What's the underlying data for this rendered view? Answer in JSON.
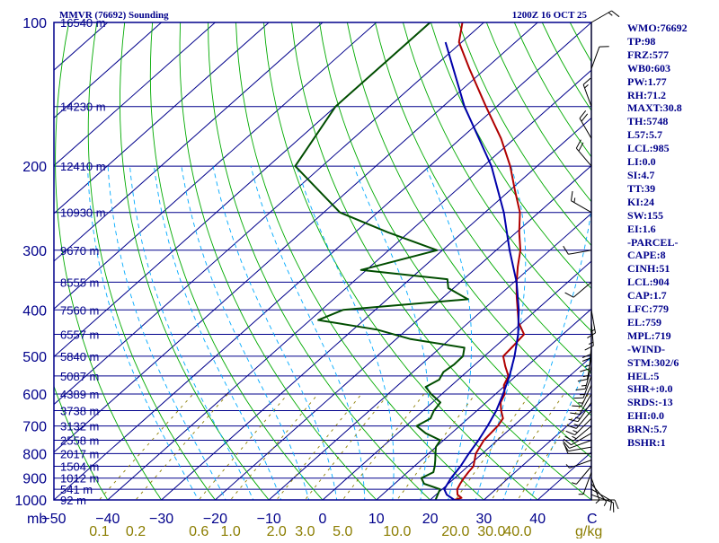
{
  "header": {
    "station": "MMVR (76692) Sounding",
    "time": "1200Z 16 OCT 25"
  },
  "colors": {
    "frame": "#00008b",
    "isobar": "#00008b",
    "isotherm": "#00008b",
    "dry_adiabat": "#00aa00",
    "moist_adiabat": "#00aaff",
    "mixing_ratio": "#8b7d00",
    "temperature": "#b00000",
    "dewpoint": "#004d00",
    "parcel": "#0000aa",
    "wind": "#000000"
  },
  "chart_data": {
    "type": "line",
    "title": "MMVR (76692) Sounding",
    "skew_t": true,
    "y_scale": "log",
    "ylabel": "mb",
    "xlabel": "C",
    "xlim": [
      -50,
      50
    ],
    "ylim": [
      1000,
      100
    ],
    "pressure_ticks": [
      100,
      200,
      300,
      400,
      500,
      600,
      700,
      800,
      900,
      1000
    ],
    "temperature_ticks": [
      -50,
      -40,
      -30,
      -20,
      -10,
      0,
      10,
      20,
      30,
      40
    ],
    "pressure_unit_label": "mb",
    "temperature_unit_label": "C",
    "mixing_ratio_unit_label": "g/kg",
    "mixing_ratio_labels": [
      "0.1",
      "0.2",
      "0.6",
      "1.0",
      "2.0",
      "3.0",
      "5.0",
      "10.0",
      "20.0",
      "30.0",
      "40.0"
    ],
    "mixing_ratio_values": [
      0.1,
      0.2,
      0.6,
      1.0,
      2.0,
      3.0,
      5.0,
      10.0,
      20.0,
      30.0,
      40.0
    ],
    "height_levels": [
      {
        "p": 100,
        "label": "16540 m"
      },
      {
        "p": 150,
        "label": "14230 m"
      },
      {
        "p": 200,
        "label": "12410 m"
      },
      {
        "p": 250,
        "label": "10930 m"
      },
      {
        "p": 300,
        "label": "9670 m"
      },
      {
        "p": 350,
        "label": "8555 m"
      },
      {
        "p": 400,
        "label": "7560 m"
      },
      {
        "p": 450,
        "label": "6557 m"
      },
      {
        "p": 500,
        "label": "5840 m"
      },
      {
        "p": 550,
        "label": "5087 m"
      },
      {
        "p": 600,
        "label": "4389 m"
      },
      {
        "p": 650,
        "label": "3738 m"
      },
      {
        "p": 700,
        "label": "3132 m"
      },
      {
        "p": 750,
        "label": "2558 m"
      },
      {
        "p": 800,
        "label": "2017 m"
      },
      {
        "p": 850,
        "label": "1504 m"
      },
      {
        "p": 900,
        "label": "1012 m"
      },
      {
        "p": 950,
        "label": "541 m"
      },
      {
        "p": 1000,
        "label": "92 m"
      }
    ],
    "series": [
      {
        "key": "temperature",
        "points": [
          [
            1000,
            24.5
          ],
          [
            990,
            25.4
          ],
          [
            975,
            24.0
          ],
          [
            950,
            22.8
          ],
          [
            925,
            22.2
          ],
          [
            900,
            21.7
          ],
          [
            875,
            21.3
          ],
          [
            850,
            21.0
          ],
          [
            800,
            18.8
          ],
          [
            750,
            17.5
          ],
          [
            700,
            17.1
          ],
          [
            675,
            16.5
          ],
          [
            650,
            14.5
          ],
          [
            625,
            12.7
          ],
          [
            600,
            11.7
          ],
          [
            575,
            9.7
          ],
          [
            550,
            8.6
          ],
          [
            525,
            6.0
          ],
          [
            500,
            3.5
          ],
          [
            475,
            3.2
          ],
          [
            450,
            2.8
          ],
          [
            425,
            -0.7
          ],
          [
            400,
            -3.5
          ],
          [
            375,
            -6.5
          ],
          [
            350,
            -9.5
          ],
          [
            325,
            -12.5
          ],
          [
            300,
            -15.5
          ],
          [
            275,
            -19.5
          ],
          [
            250,
            -23.5
          ],
          [
            225,
            -29.0
          ],
          [
            200,
            -35.0
          ],
          [
            175,
            -42.5
          ],
          [
            150,
            -52.0
          ],
          [
            125,
            -63.0
          ],
          [
            110,
            -70.5
          ],
          [
            100,
            -74.0
          ]
        ]
      },
      {
        "key": "dewpoint",
        "points": [
          [
            1000,
            21.0
          ],
          [
            975,
            20.3
          ],
          [
            950,
            19.6
          ],
          [
            925,
            15.5
          ],
          [
            900,
            13.8
          ],
          [
            875,
            14.8
          ],
          [
            850,
            13.8
          ],
          [
            825,
            12.6
          ],
          [
            800,
            11.3
          ],
          [
            775,
            10.0
          ],
          [
            750,
            9.4
          ],
          [
            725,
            5.2
          ],
          [
            700,
            2.0
          ],
          [
            675,
            3.0
          ],
          [
            650,
            2.0
          ],
          [
            625,
            1.5
          ],
          [
            600,
            -2.0
          ],
          [
            580,
            -4.5
          ],
          [
            560,
            -3.5
          ],
          [
            540,
            -4.3
          ],
          [
            520,
            -3.9
          ],
          [
            500,
            -4.0
          ],
          [
            480,
            -5.5
          ],
          [
            460,
            -17.5
          ],
          [
            440,
            -25.5
          ],
          [
            420,
            -38.5
          ],
          [
            400,
            -36.0
          ],
          [
            380,
            -15.0
          ],
          [
            360,
            -21.0
          ],
          [
            345,
            -23.0
          ],
          [
            330,
            -41.0
          ],
          [
            300,
            -31.0
          ],
          [
            275,
            -44.0
          ],
          [
            250,
            -57.0
          ],
          [
            200,
            -75.0
          ],
          [
            150,
            -80.0
          ],
          [
            125,
            -80.0
          ],
          [
            100,
            -80.0
          ]
        ]
      },
      {
        "key": "parcel",
        "points": [
          [
            1000,
            24.5
          ],
          [
            975,
            22.0
          ],
          [
            950,
            20.4
          ],
          [
            900,
            19.3
          ],
          [
            850,
            18.6
          ],
          [
            800,
            17.5
          ],
          [
            750,
            16.5
          ],
          [
            700,
            15.2
          ],
          [
            650,
            13.6
          ],
          [
            600,
            11.4
          ],
          [
            550,
            8.8
          ],
          [
            500,
            5.6
          ],
          [
            450,
            1.7
          ],
          [
            400,
            -3.3
          ],
          [
            350,
            -9.5
          ],
          [
            300,
            -17.5
          ],
          [
            250,
            -26.5
          ],
          [
            200,
            -38.5
          ],
          [
            150,
            -56.0
          ],
          [
            110,
            -73.0
          ]
        ]
      }
    ]
  },
  "indices": [
    "WMO:76692",
    "TP:98",
    "FRZ:577",
    "WB0:603",
    "PW:1.77",
    "RH:71.2",
    "MAXT:30.8",
    "TH:5748",
    "L57:5.7",
    "LCL:985",
    "LI:0.0",
    "SI:4.7",
    "TT:39",
    "KI:24",
    "SW:155",
    "EI:1.6",
    "-PARCEL-",
    "CAPE:8",
    "CINH:51",
    "LCL:904",
    "CAP:1.7",
    "LFC:779",
    "EL:759",
    "MPL:719",
    "-WIND-",
    "STM:302/6",
    "HEL:5",
    "SHR+:0.0",
    "SRDS:-13",
    "EHI:0.0",
    "BRN:5.7",
    "BSHR:1"
  ],
  "wind_barbs": [
    {
      "p": 1000,
      "dir": 90,
      "spd": 10
    },
    {
      "p": 975,
      "dir": 110,
      "spd": 10
    },
    {
      "p": 950,
      "dir": 120,
      "spd": 10
    },
    {
      "p": 925,
      "dir": 140,
      "spd": 5
    },
    {
      "p": 900,
      "dir": 160,
      "spd": 5
    },
    {
      "p": 875,
      "dir": 200,
      "spd": 5
    },
    {
      "p": 850,
      "dir": 220,
      "spd": 5
    },
    {
      "p": 825,
      "dir": 250,
      "spd": 5
    },
    {
      "p": 800,
      "dir": 270,
      "spd": 10
    },
    {
      "p": 775,
      "dir": 260,
      "spd": 10
    },
    {
      "p": 750,
      "dir": 250,
      "spd": 10
    },
    {
      "p": 725,
      "dir": 240,
      "spd": 10
    },
    {
      "p": 700,
      "dir": 230,
      "spd": 15
    },
    {
      "p": 675,
      "dir": 225,
      "spd": 15
    },
    {
      "p": 650,
      "dir": 220,
      "spd": 15
    },
    {
      "p": 625,
      "dir": 215,
      "spd": 15
    },
    {
      "p": 600,
      "dir": 210,
      "spd": 15
    },
    {
      "p": 575,
      "dir": 205,
      "spd": 15
    },
    {
      "p": 550,
      "dir": 200,
      "spd": 15
    },
    {
      "p": 525,
      "dir": 195,
      "spd": 15
    },
    {
      "p": 500,
      "dir": 190,
      "spd": 15
    },
    {
      "p": 475,
      "dir": 185,
      "spd": 15
    },
    {
      "p": 450,
      "dir": 180,
      "spd": 20
    },
    {
      "p": 425,
      "dir": 175,
      "spd": 15
    },
    {
      "p": 400,
      "dir": 170,
      "spd": 15
    },
    {
      "p": 350,
      "dir": 230,
      "spd": 10
    },
    {
      "p": 300,
      "dir": 260,
      "spd": 10
    },
    {
      "p": 250,
      "dir": 300,
      "spd": 15
    },
    {
      "p": 200,
      "dir": 320,
      "spd": 20
    },
    {
      "p": 175,
      "dir": 330,
      "spd": 20
    },
    {
      "p": 150,
      "dir": 340,
      "spd": 15
    },
    {
      "p": 125,
      "dir": 20,
      "spd": 10
    },
    {
      "p": 100,
      "dir": 60,
      "spd": 15
    }
  ]
}
